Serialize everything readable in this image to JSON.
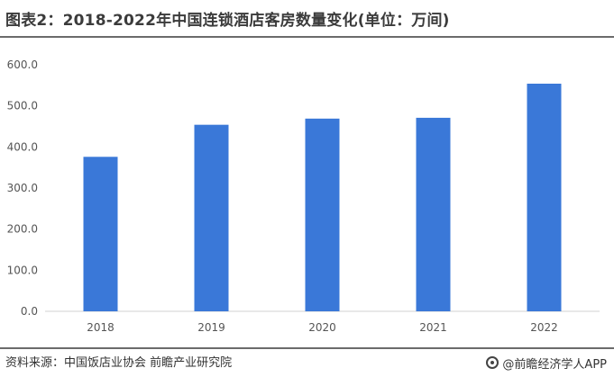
{
  "title": "图表2：2018-2022年中国连锁酒店客房数量变化(单位：万间)",
  "footer": {
    "source": "资料来源：中国饭店业协会 前瞻产业研究院",
    "brand": "@前瞻经济学人APP",
    "brand_icon": "qianzhan-logo-icon"
  },
  "colors": {
    "bar": "#3a78d8",
    "axis": "#d0d0d0"
  },
  "chart_data": {
    "type": "bar",
    "categories": [
      "2018",
      "2019",
      "2020",
      "2021",
      "2022"
    ],
    "values": [
      376,
      454,
      469,
      471,
      554
    ],
    "ylim": [
      0,
      600
    ],
    "yticks": [
      "0.0",
      "100.0",
      "200.0",
      "300.0",
      "400.0",
      "500.0",
      "600.0"
    ],
    "xlabel": "",
    "ylabel": "",
    "grid": false,
    "legend": "none"
  }
}
